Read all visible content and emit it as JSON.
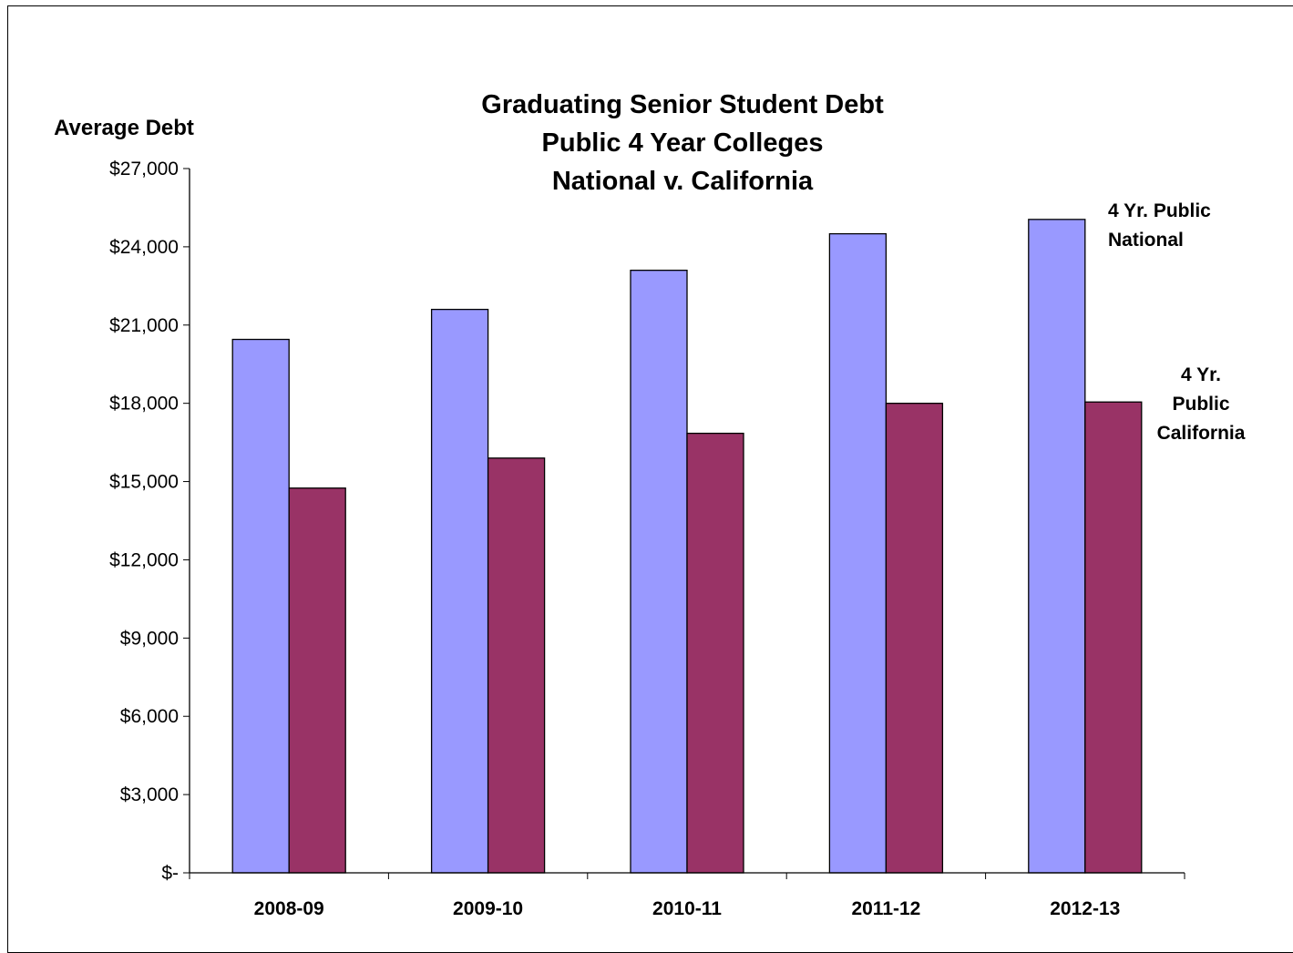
{
  "chart_data": {
    "type": "bar",
    "title_lines": [
      "Graduating Senior Student Debt",
      "Public 4 Year Colleges",
      "National v. California"
    ],
    "ylabel": "Average Debt",
    "xlabel": "",
    "categories": [
      "2008-09",
      "2009-10",
      "2010-11",
      "2011-12",
      "2012-13"
    ],
    "ylim": [
      0,
      27000
    ],
    "ytick_values": [
      0,
      3000,
      6000,
      9000,
      12000,
      15000,
      18000,
      21000,
      24000,
      27000
    ],
    "ytick_labels": [
      "$-",
      "$3,000",
      "$6,000",
      "$9,000",
      "$12,000",
      "$15,000",
      "$18,000",
      "$21,000",
      "$24,000",
      "$27,000"
    ],
    "grid": false,
    "legend": "none",
    "series": [
      {
        "name": "4 Yr. Public National",
        "label_lines": [
          "4 Yr. Public",
          "National"
        ],
        "color": "#9999ff",
        "values": [
          20450,
          21600,
          23100,
          24500,
          25050
        ]
      },
      {
        "name": "4 Yr. Public California",
        "label_lines": [
          "4 Yr.",
          "Public",
          "California"
        ],
        "color": "#993366",
        "values": [
          14750,
          15900,
          16850,
          18000,
          18050
        ]
      }
    ]
  }
}
